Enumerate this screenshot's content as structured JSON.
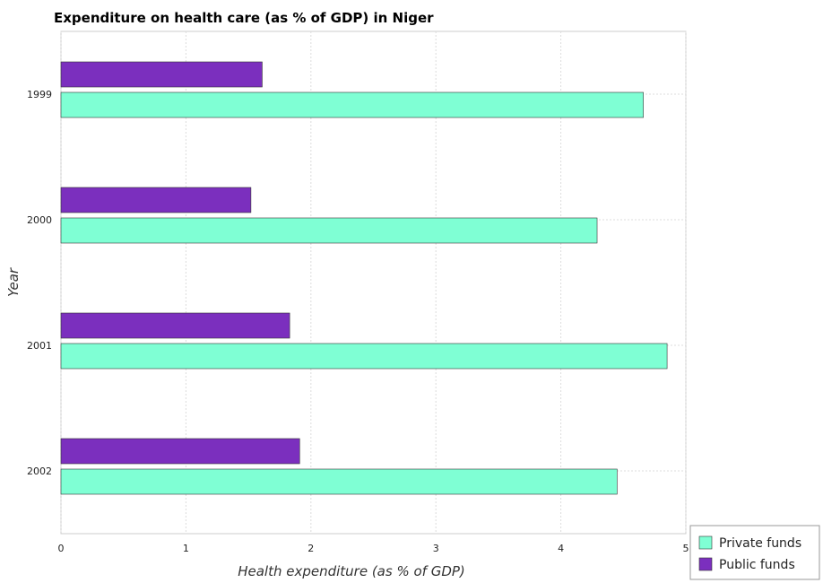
{
  "chart_data": {
    "type": "bar",
    "orientation": "horizontal",
    "title": "Expenditure on health care (as % of GDP) in Niger",
    "xlabel": "Health expenditure (as % of GDP)",
    "ylabel": "Year",
    "categories": [
      "1999",
      "2000",
      "2001",
      "2002"
    ],
    "xlim": [
      0,
      5
    ],
    "xticks": [
      "0",
      "1",
      "2",
      "3",
      "4",
      "5"
    ],
    "grid": true,
    "legend_position": "bottom-right",
    "series": [
      {
        "name": "Private funds",
        "color": "#7fffd4",
        "values": [
          4.66,
          4.29,
          4.85,
          4.45
        ]
      },
      {
        "name": "Public funds",
        "color": "#7b2fbe",
        "values": [
          1.61,
          1.52,
          1.83,
          1.91
        ]
      }
    ]
  }
}
